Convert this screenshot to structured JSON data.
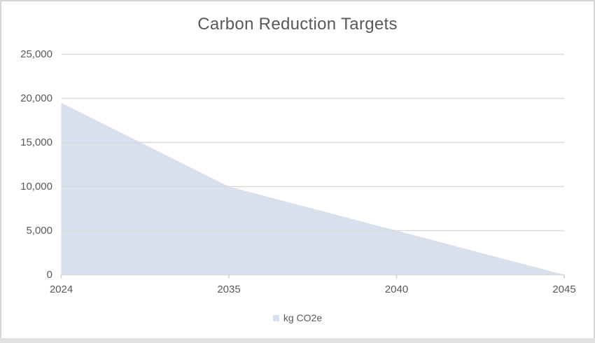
{
  "frame": {
    "background": "#ffffff",
    "border_color": "#d6d6d6",
    "bottom_strip_color": "#e1e1e1"
  },
  "chart_data": {
    "type": "area",
    "title": "Carbon Reduction Targets",
    "categories": [
      "2024",
      "2035",
      "2040",
      "2045"
    ],
    "series": [
      {
        "name": "kg CO2e",
        "values": [
          19500,
          10000,
          5000,
          0
        ]
      }
    ],
    "xlabel": "",
    "ylabel": "",
    "ylim": [
      0,
      25000
    ],
    "ytick_step": 5000,
    "ytick_labels": [
      "0",
      "5,000",
      "10,000",
      "15,000",
      "20,000",
      "25,000"
    ],
    "grid": "horizontal",
    "legend_position": "bottom-center",
    "colors": {
      "area_fill": "#d7e0ec",
      "gridline": "#d9d9d9",
      "tick": "#c9c9c9",
      "axis_text": "#595959",
      "title_text": "#595959"
    }
  },
  "legend": {
    "label": "kg CO2e",
    "marker_color": "#d7e0ec"
  }
}
